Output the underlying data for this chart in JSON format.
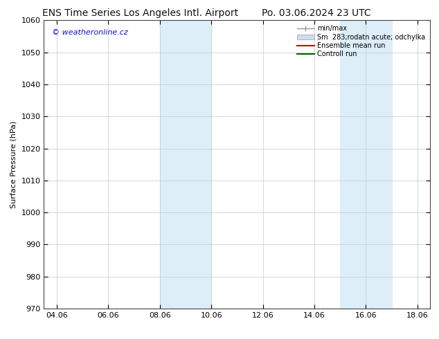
{
  "title_left": "ENS Time Series Los Angeles Intl. Airport",
  "title_right": "Po. 03.06.2024 23 UTC",
  "ylabel": "Surface Pressure (hPa)",
  "ylim": [
    970,
    1060
  ],
  "yticks": [
    970,
    980,
    990,
    1000,
    1010,
    1020,
    1030,
    1040,
    1050,
    1060
  ],
  "xtick_labels": [
    "04.06",
    "06.06",
    "08.06",
    "10.06",
    "12.06",
    "14.06",
    "16.06",
    "18.06"
  ],
  "xtick_positions": [
    4,
    6,
    8,
    10,
    12,
    14,
    16,
    18
  ],
  "xlim": [
    3.5,
    18.5
  ],
  "bg_color": "#ffffff",
  "plot_bg_color": "#ffffff",
  "shaded_regions": [
    {
      "x_start": 8.0,
      "x_end": 9.5,
      "color": "#ddeef8"
    },
    {
      "x_start": 9.5,
      "x_end": 10.0,
      "color": "#ddeef8"
    },
    {
      "x_start": 15.0,
      "x_end": 16.0,
      "color": "#ddeef8"
    },
    {
      "x_start": 16.0,
      "x_end": 17.0,
      "color": "#ddeef8"
    }
  ],
  "watermark_text": "© weatheronline.cz",
  "watermark_color": "#1010cc",
  "watermark_fontsize": 8,
  "legend_entries": [
    {
      "label": "min/max",
      "color": "#999999",
      "type": "errorbar"
    },
    {
      "label": "Sm  283;rodatn acute; odchylka",
      "color": "#ccddf0",
      "type": "bar"
    },
    {
      "label": "Ensemble mean run",
      "color": "#cc0000",
      "type": "line"
    },
    {
      "label": "Controll run",
      "color": "#006600",
      "type": "line"
    }
  ],
  "title_fontsize": 10,
  "axis_fontsize": 8,
  "tick_fontsize": 8,
  "grid_color": "#bbcccc",
  "border_color": "#444444"
}
